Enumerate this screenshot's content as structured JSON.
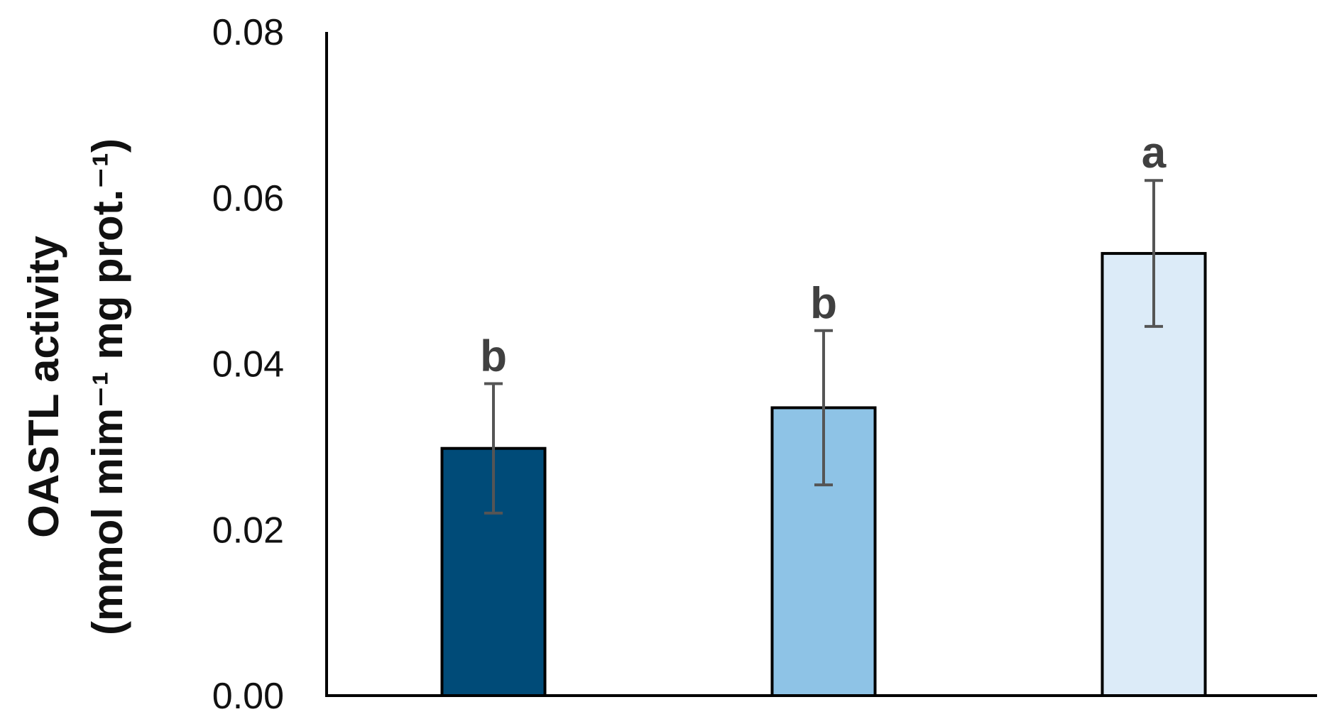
{
  "chart_data": {
    "type": "bar",
    "ylabel_lines": [
      "OASTL activity",
      "(mmol mim⁻¹ mg prot.⁻¹)"
    ],
    "ylim": [
      0,
      0.08
    ],
    "y_ticks": [
      "0.00",
      "0.02",
      "0.04",
      "0.06",
      "0.08"
    ],
    "grid": false,
    "legend": "none",
    "bars": [
      {
        "value": 0.0298,
        "error": 0.0078,
        "sig_label": "b",
        "color": "#004b78"
      },
      {
        "value": 0.0347,
        "error": 0.0093,
        "sig_label": "b",
        "color": "#8ec3e6"
      },
      {
        "value": 0.0533,
        "error": 0.0088,
        "sig_label": "a",
        "color": "#dcebf8"
      }
    ]
  },
  "colors": {
    "axis": "#000000",
    "bar_outline": "#000000",
    "error_bar": "#555555",
    "sig_text": "#404040"
  }
}
